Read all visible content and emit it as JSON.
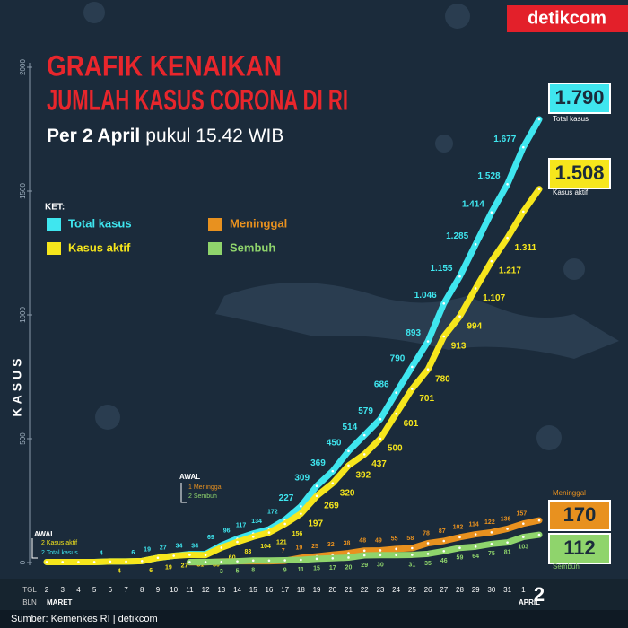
{
  "chart_data": {
    "type": "line",
    "title": [
      "GRAFIK KENAIKAN",
      "JUMLAH KASUS CORONA DI RI"
    ],
    "subtitle": [
      "Per 2 April",
      "pukul 15.42 WIB"
    ],
    "brand": "detikcom",
    "source": "Sumber: Kemenkes RI | detikcom",
    "legend_title": "KET:",
    "ylabel": "KASUS",
    "x_row_labels": [
      "TGL",
      "BLN"
    ],
    "months": [
      "MARET",
      "APRIL"
    ],
    "annotations": [
      "AWAL",
      "2 Kasus aktif",
      "2 Total kasus",
      "AWAL",
      "1 Meninggal",
      "2 Sembuh"
    ],
    "categories": [
      "2",
      "3",
      "4",
      "5",
      "6",
      "7",
      "8",
      "9",
      "10",
      "11",
      "12",
      "13",
      "14",
      "15",
      "16",
      "17",
      "18",
      "19",
      "20",
      "21",
      "22",
      "23",
      "24",
      "25",
      "26",
      "27",
      "28",
      "29",
      "30",
      "31",
      "1",
      "2"
    ],
    "ylim": [
      0,
      2000
    ],
    "yticks": [
      0,
      500,
      1000,
      1500,
      2000
    ],
    "series": [
      {
        "name": "Total kasus",
        "color": "#3fe6ef",
        "values": [
          2,
          2,
          2,
          2,
          4,
          4,
          6,
          19,
          27,
          34,
          34,
          69,
          96,
          117,
          134,
          172,
          227,
          309,
          369,
          450,
          514,
          579,
          686,
          790,
          893,
          1046,
          1155,
          1285,
          1414,
          1528,
          1677,
          1790
        ],
        "value_labels": [
          null,
          null,
          null,
          null,
          "4",
          null,
          "6",
          "19",
          "27",
          "34",
          "34",
          "69",
          "96",
          "117",
          "134",
          "172",
          "227",
          "309",
          "369",
          "450",
          "514",
          "579",
          "686",
          "790",
          "893",
          "1.046",
          "1.155",
          "1.285",
          "1.414",
          "1.528",
          "1.677",
          "1.790"
        ]
      },
      {
        "name": "Kasus aktif",
        "color": "#f6e61c",
        "values": [
          2,
          2,
          2,
          2,
          4,
          4,
          6,
          19,
          27,
          31,
          30,
          60,
          83,
          104,
          121,
          156,
          197,
          269,
          320,
          392,
          437,
          500,
          601,
          701,
          780,
          913,
          994,
          1107,
          1217,
          1311,
          1417,
          1508
        ],
        "value_labels": [
          null,
          null,
          null,
          null,
          "4",
          null,
          "6",
          "19",
          "27",
          "31",
          "30",
          "60",
          "83",
          "104",
          "121",
          "156",
          "197",
          "269",
          "320",
          "392",
          "437",
          "500",
          "601",
          "701",
          "780",
          "913",
          "994",
          "1.107",
          "1.217",
          "1.311",
          null,
          "1.508"
        ]
      },
      {
        "name": "Meninggal",
        "color": "#e8911f",
        "values": [
          null,
          null,
          null,
          null,
          null,
          null,
          null,
          null,
          null,
          1,
          1,
          4,
          5,
          5,
          5,
          7,
          19,
          25,
          32,
          38,
          48,
          49,
          55,
          58,
          78,
          87,
          102,
          114,
          122,
          136,
          157,
          170
        ],
        "value_labels": [
          null,
          null,
          null,
          null,
          null,
          null,
          null,
          null,
          null,
          null,
          null,
          null,
          null,
          null,
          null,
          "7",
          "19",
          "25",
          "32",
          "38",
          "48",
          "49",
          "55",
          "58",
          "78",
          "87",
          "102",
          "114",
          "122",
          "136",
          "157",
          "170"
        ]
      },
      {
        "name": "Sembuh",
        "color": "#8fd46c",
        "values": [
          null,
          null,
          null,
          null,
          null,
          null,
          null,
          null,
          null,
          2,
          2,
          3,
          5,
          8,
          8,
          9,
          11,
          15,
          17,
          20,
          29,
          30,
          30,
          31,
          35,
          46,
          59,
          64,
          75,
          81,
          103,
          112
        ],
        "value_labels": [
          null,
          null,
          null,
          null,
          null,
          null,
          null,
          null,
          null,
          null,
          null,
          "3",
          "5",
          "8",
          null,
          "9",
          "11",
          "15",
          "17",
          "20",
          "29",
          "30",
          null,
          "31",
          "35",
          "46",
          "59",
          "64",
          "75",
          "81",
          "103",
          "112"
        ]
      }
    ]
  }
}
